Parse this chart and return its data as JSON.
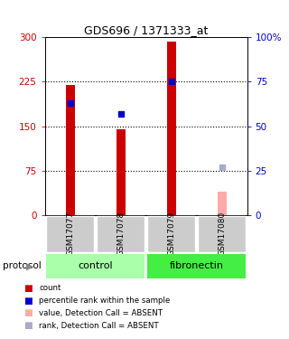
{
  "title": "GDS696 / 1371333_at",
  "samples": [
    "GSM17077",
    "GSM17078",
    "GSM17079",
    "GSM17080"
  ],
  "bar_values": [
    220,
    145,
    293,
    40
  ],
  "bar_colors": [
    "#cc0000",
    "#cc0000",
    "#cc0000",
    "#ffaaaa"
  ],
  "rank_values": [
    63,
    57,
    75,
    27
  ],
  "rank_colors": [
    "#0000cc",
    "#0000cc",
    "#0000cc",
    "#aaaacc"
  ],
  "absent_flags": [
    false,
    false,
    false,
    true
  ],
  "ylim_left": [
    0,
    300
  ],
  "ylim_right": [
    0,
    100
  ],
  "yticks_left": [
    0,
    75,
    150,
    225,
    300
  ],
  "yticks_right": [
    0,
    25,
    50,
    75,
    100
  ],
  "ytick_labels_right": [
    "0",
    "25",
    "50",
    "75",
    "100%"
  ],
  "dotted_lines": [
    75,
    150,
    225
  ],
  "bar_width": 0.18,
  "bg_color": "#ffffff",
  "label_count": "count",
  "label_rank": "percentile rank within the sample",
  "label_absent_val": "value, Detection Call = ABSENT",
  "label_absent_rank": "rank, Detection Call = ABSENT",
  "protocol_label": "protocol",
  "control_color": "#aaffaa",
  "fibronectin_color": "#44ee44",
  "gray_box_color": "#cccccc",
  "red_axis_color": "#cc0000",
  "blue_axis_color": "#0000cc"
}
